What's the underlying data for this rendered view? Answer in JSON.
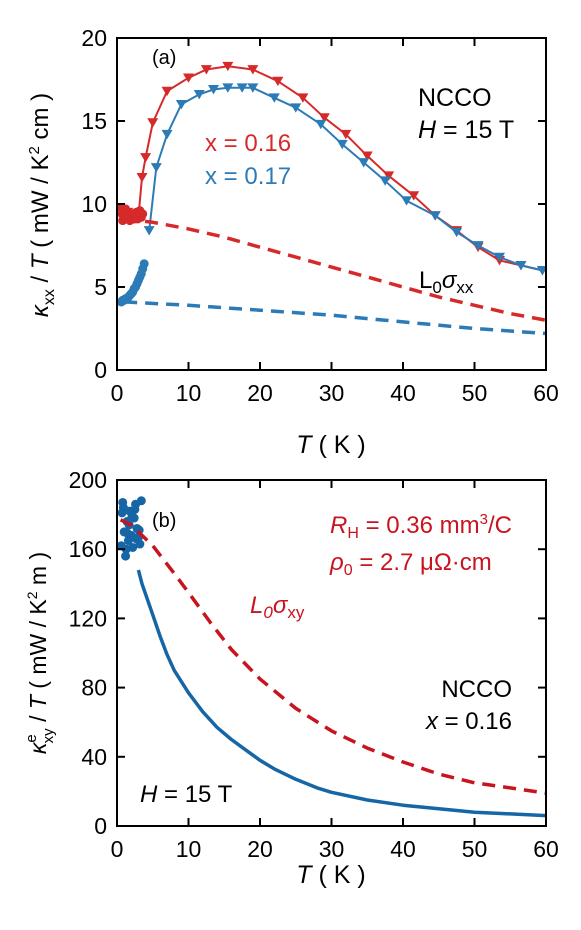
{
  "chart_data": [
    {
      "type": "line",
      "panel_label": "(a)",
      "title": "",
      "xlabel": {
        "symbol": "T",
        "unit": "( K )"
      },
      "ylabel": {
        "kappa": "κ",
        "kappa_sub": "xx",
        "mid": " / ",
        "T": "T",
        "unit_pre": " ( mW / K",
        "unit_sup": "2",
        "unit_post": " cm )"
      },
      "xlim": [
        0,
        60
      ],
      "ylim": [
        0,
        20
      ],
      "xticks": [
        "0",
        "10",
        "20",
        "30",
        "40",
        "50",
        "60"
      ],
      "yticks": [
        "0",
        "5",
        "10",
        "15",
        "20"
      ],
      "annotations": {
        "material": "NCCO",
        "field": {
          "H": "H",
          "rest": " = 15 T"
        },
        "lorenz": {
          "L": "L",
          "L_sub": "0",
          "sigma": "σ",
          "sigma_sub": "xx"
        }
      },
      "colors": {
        "red": "#d62a2a",
        "blue": "#2c7bb6"
      },
      "series": [
        {
          "name": "x = 0.16",
          "color": "#d62a2a",
          "style": "markers+line",
          "marker": "triangle-down",
          "x": [
            1.5,
            2.0,
            2.5,
            3.0,
            3.5,
            4.0,
            5.0,
            7.0,
            10.0,
            12.5,
            15.5,
            19.0,
            22.5,
            26.0,
            29.0,
            32.0,
            35.0,
            38.0,
            41.5,
            44.5,
            47.5,
            50.5,
            53.5,
            56.5,
            59.5
          ],
          "y": [
            9.5,
            9.3,
            9.1,
            9.2,
            11.6,
            12.8,
            14.9,
            16.8,
            17.6,
            18.1,
            18.3,
            18.1,
            17.4,
            16.4,
            15.2,
            14.2,
            12.9,
            11.7,
            10.5,
            9.3,
            8.4,
            7.4,
            6.6,
            6.3,
            6.0
          ]
        },
        {
          "name": "",
          "color": "#d62a2a",
          "style": "scatter",
          "marker": "circle",
          "x": [
            0.5,
            0.7,
            0.9,
            1.1,
            1.3,
            1.5,
            1.8,
            2.1,
            2.4,
            2.7,
            3.0,
            3.2,
            3.4,
            3.6,
            0.8,
            1.2,
            2.9,
            3.1
          ],
          "y": [
            9.8,
            9.4,
            9.6,
            9.1,
            9.5,
            9.2,
            9.0,
            9.4,
            9.1,
            9.5,
            9.3,
            9.6,
            9.2,
            9.4,
            9.0,
            9.7,
            9.1,
            9.5
          ]
        },
        {
          "name": "x = 0.17",
          "color": "#2c7bb6",
          "style": "markers+line",
          "marker": "triangle-down",
          "x": [
            4.5,
            5.5,
            7.0,
            9.0,
            11.5,
            13.5,
            15.5,
            17.5,
            19.0,
            22.0,
            25.0,
            28.5,
            31.5,
            34.5,
            37.5,
            40.5,
            44.5,
            47.5,
            50.5,
            53.5,
            56.5,
            59.5
          ],
          "y": [
            8.4,
            12.2,
            14.2,
            16.0,
            16.6,
            16.9,
            17.0,
            17.0,
            17.0,
            16.4,
            15.8,
            14.8,
            13.6,
            12.5,
            11.4,
            10.2,
            9.3,
            8.3,
            7.5,
            6.8,
            6.3,
            6.0
          ]
        },
        {
          "name": "",
          "color": "#2c7bb6",
          "style": "scatter",
          "marker": "circle",
          "x": [
            0.6,
            0.8,
            1.0,
            1.2,
            1.4,
            1.6,
            1.8,
            2.0,
            2.2,
            2.4,
            2.6,
            2.8,
            3.0,
            3.2,
            3.4,
            3.6,
            3.8
          ],
          "y": [
            4.1,
            4.2,
            4.2,
            4.3,
            4.3,
            4.4,
            4.5,
            4.6,
            4.7,
            4.9,
            5.0,
            5.2,
            5.4,
            5.6,
            5.8,
            6.1,
            6.4
          ]
        },
        {
          "name": "",
          "color": "#d62a2a",
          "style": "dashed",
          "x": [
            1,
            5,
            10,
            15,
            20,
            25,
            30,
            35,
            40,
            45,
            50,
            55,
            60
          ],
          "y": [
            9.1,
            8.9,
            8.5,
            8.0,
            7.4,
            6.8,
            6.2,
            5.6,
            5.0,
            4.4,
            3.9,
            3.4,
            3.0
          ]
        },
        {
          "name": "",
          "color": "#2c7bb6",
          "style": "dashed",
          "x": [
            1,
            10,
            20,
            30,
            40,
            50,
            60
          ],
          "y": [
            4.1,
            3.9,
            3.6,
            3.3,
            2.9,
            2.5,
            2.2
          ]
        }
      ]
    },
    {
      "type": "line",
      "panel_label": "(b)",
      "title": "",
      "xlabel": {
        "symbol": "T",
        "unit": "( K )"
      },
      "ylabel": {
        "kappa": "κ",
        "sup": "e",
        "sub": "xy",
        "mid": " / ",
        "T": "T",
        "unit_pre": " ( mW / K",
        "unit_sup": "2",
        "unit_post": " m )"
      },
      "xlim": [
        0,
        60
      ],
      "ylim": [
        0,
        200
      ],
      "xticks": [
        "0",
        "10",
        "20",
        "30",
        "40",
        "50",
        "60"
      ],
      "yticks": [
        "0",
        "40",
        "80",
        "120",
        "160",
        "200"
      ],
      "annotations": {
        "rh": {
          "R": "R",
          "sub": "H",
          "rest": " = 0.36 mm",
          "sup": "3",
          "tail": "/C"
        },
        "rho": {
          "rho": "ρ",
          "sub": "0",
          "rest": " = 2.7 μΩ·cm"
        },
        "lorenz": {
          "L": "L",
          "L_sub": "0",
          "sigma": "σ",
          "sigma_sub": "xy"
        },
        "material": "NCCO",
        "doping": {
          "x": "x",
          "rest": " = 0.16"
        },
        "field": {
          "H": "H",
          "rest": " = 15 T"
        }
      },
      "colors": {
        "red": "#c8141e",
        "blue": "#1666a6"
      },
      "series": [
        {
          "name": "",
          "color": "#1666a6",
          "style": "solid",
          "x": [
            3.0,
            3.5,
            4.0,
            5.0,
            6.0,
            7.0,
            8.0,
            10.0,
            12.0,
            14.0,
            16.0,
            18.0,
            20.0,
            22.0,
            25.0,
            28.0,
            30.0,
            35.0,
            40.0,
            45.0,
            50.0,
            55.0,
            60.0
          ],
          "y": [
            148,
            140,
            134,
            122,
            110,
            99,
            90,
            77,
            66,
            57,
            50,
            44,
            38,
            33,
            27,
            22,
            19.5,
            15,
            12,
            10,
            8,
            7,
            6
          ]
        },
        {
          "name": "",
          "color": "#1666a6",
          "style": "scatter",
          "marker": "circle",
          "x": [
            0.6,
            0.8,
            1.0,
            1.2,
            1.4,
            1.6,
            1.8,
            2.0,
            2.2,
            2.4,
            2.6,
            2.8,
            3.0,
            3.2,
            3.4,
            0.9,
            1.3,
            2.1,
            2.7,
            1.7,
            0.7,
            1.5,
            2.5,
            3.1
          ],
          "y": [
            162,
            187,
            170,
            156,
            176,
            165,
            182,
            168,
            161,
            178,
            186,
            172,
            167,
            163,
            188,
            184,
            160,
            179,
            166,
            174,
            181,
            169,
            183,
            171
          ]
        },
        {
          "name": "",
          "color": "#c8141e",
          "style": "dashed",
          "x": [
            0.5,
            2,
            5,
            8,
            10,
            13,
            16,
            20,
            25,
            30,
            35,
            40,
            45,
            50,
            55,
            60
          ],
          "y": [
            177,
            174,
            162,
            146,
            135,
            118,
            102,
            85,
            68,
            55,
            45,
            37,
            30,
            25,
            22,
            19
          ]
        }
      ]
    }
  ]
}
